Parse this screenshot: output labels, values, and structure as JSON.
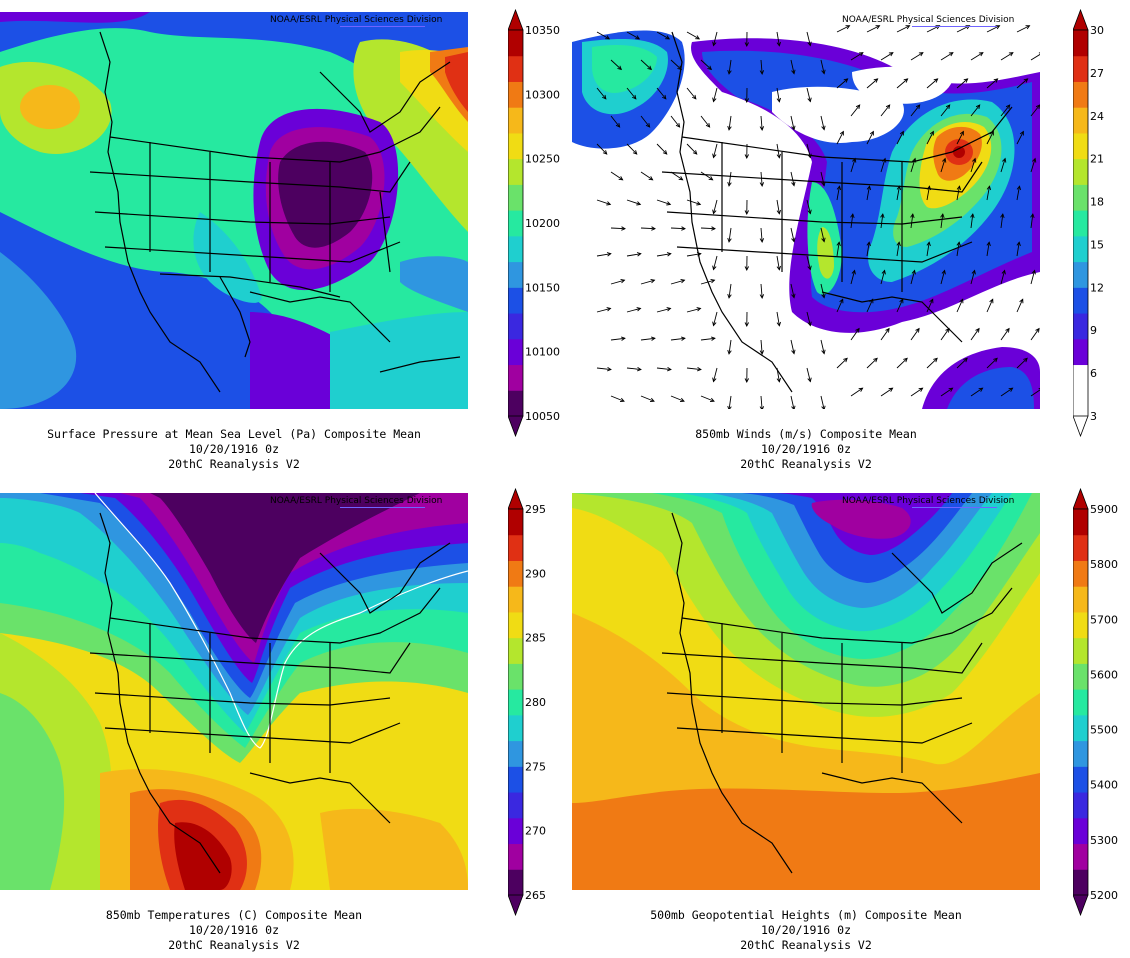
{
  "credit": "NOAA/ESRL Physical Sciences Division",
  "panels": [
    {
      "id": "slp",
      "title_line1": "Surface Pressure at Mean Sea Level (Pa)   Composite Mean",
      "title_line2": "10/20/1916 0z",
      "title_line3": "20thC Reanalysis V2",
      "colorbar": {
        "labels": [
          "10050",
          "10100",
          "10150",
          "10200",
          "10250",
          "10300",
          "10350"
        ],
        "colors": [
          "#4d0060",
          "#a000a0",
          "#6a00d8",
          "#3a28e0",
          "#1c50e6",
          "#2f96e0",
          "#1fcfcf",
          "#26e9a0",
          "#6ae26a",
          "#b4e62d",
          "#f0dc14",
          "#f6b81a",
          "#f07a14",
          "#e03014",
          "#b00000"
        ]
      },
      "legend_flags": {
        "caps": "triangles"
      }
    },
    {
      "id": "wind850",
      "title_line1": "850mb Winds (m/s)   Composite Mean",
      "title_line2": "10/20/1916 0z",
      "title_line3": "20thC Reanalysis V2",
      "colorbar": {
        "labels": [
          "3",
          "6",
          "9",
          "12",
          "15",
          "18",
          "21",
          "24",
          "27",
          "30"
        ],
        "colors": [
          "#ffffff",
          "#ffffff",
          "#6a00d8",
          "#3a28e0",
          "#1c50e6",
          "#2f96e0",
          "#1fcfcf",
          "#26e9a0",
          "#6ae26a",
          "#b4e62d",
          "#f0dc14",
          "#f6b81a",
          "#f07a14",
          "#e03014",
          "#b00000"
        ]
      }
    },
    {
      "id": "temp850",
      "title_line1": "850mb Temperatures (C)   Composite Mean",
      "title_line2": "10/20/1916 0z",
      "title_line3": "20thC Reanalysis V2",
      "colorbar": {
        "labels": [
          "265",
          "270",
          "275",
          "280",
          "285",
          "290",
          "295"
        ],
        "colors": [
          "#4d0060",
          "#a000a0",
          "#6a00d8",
          "#3a28e0",
          "#1c50e6",
          "#2f96e0",
          "#1fcfcf",
          "#26e9a0",
          "#6ae26a",
          "#b4e62d",
          "#f0dc14",
          "#f6b81a",
          "#f07a14",
          "#e03014",
          "#b00000"
        ]
      }
    },
    {
      "id": "hgt500",
      "title_line1": "500mb Geopotential Heights (m)   Composite Mean",
      "title_line2": "10/20/1916 0z",
      "title_line3": "20thC Reanalysis V2",
      "colorbar": {
        "labels": [
          "5200",
          "5300",
          "5400",
          "5500",
          "5600",
          "5700",
          "5800",
          "5900"
        ],
        "colors": [
          "#4d0060",
          "#a000a0",
          "#6a00d8",
          "#3a28e0",
          "#1c50e6",
          "#2f96e0",
          "#1fcfcf",
          "#26e9a0",
          "#6ae26a",
          "#b4e62d",
          "#f0dc14",
          "#f6b81a",
          "#f07a14",
          "#e03014",
          "#b00000"
        ]
      }
    }
  ]
}
